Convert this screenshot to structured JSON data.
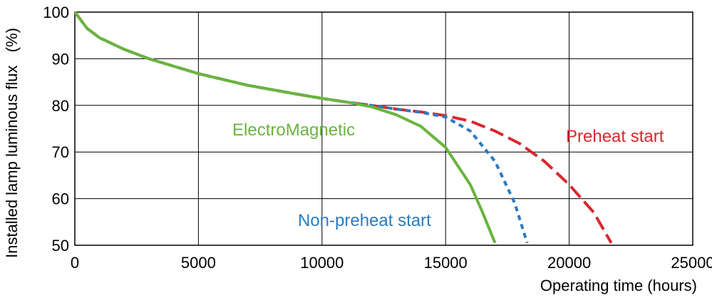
{
  "chart_data": {
    "type": "line",
    "xlabel": "Operating time (hours)",
    "ylabel": "Installed lamp luminous flux   (%)",
    "xlim": [
      0,
      25000
    ],
    "ylim": [
      50,
      100
    ],
    "x_ticks": [
      "0",
      "5000",
      "10000",
      "15000",
      "20000",
      "25000"
    ],
    "y_ticks": [
      "50",
      "60",
      "70",
      "80",
      "90",
      "100"
    ],
    "grid": true,
    "series": [
      {
        "name": "ElectroMagnetic",
        "color": "#6ab43e",
        "dash": "solid",
        "points": [
          [
            0,
            100
          ],
          [
            500,
            96.5
          ],
          [
            1000,
            94.5
          ],
          [
            2000,
            92
          ],
          [
            3000,
            90
          ],
          [
            5000,
            86.8
          ],
          [
            7000,
            84.3
          ],
          [
            9000,
            82.4
          ],
          [
            10000,
            81.5
          ],
          [
            11000,
            80.7
          ],
          [
            12000,
            79.7
          ],
          [
            13000,
            78
          ],
          [
            14000,
            75.5
          ],
          [
            15000,
            71
          ],
          [
            16000,
            63
          ],
          [
            16500,
            57
          ],
          [
            17000,
            50.5
          ]
        ]
      },
      {
        "name": "Non-preheat start",
        "color": "#2b7bbf",
        "dash": "short",
        "points": [
          [
            0,
            100
          ],
          [
            500,
            96.5
          ],
          [
            1000,
            94.5
          ],
          [
            2000,
            92
          ],
          [
            3000,
            90
          ],
          [
            5000,
            86.8
          ],
          [
            7000,
            84.3
          ],
          [
            9000,
            82.4
          ],
          [
            10000,
            81.5
          ],
          [
            11000,
            80.7
          ],
          [
            12000,
            80
          ],
          [
            13000,
            79.2
          ],
          [
            14000,
            78.5
          ],
          [
            15000,
            77.5
          ],
          [
            16000,
            74.5
          ],
          [
            17000,
            68
          ],
          [
            17800,
            59
          ],
          [
            18300,
            50.5
          ]
        ]
      },
      {
        "name": "Preheat start",
        "color": "#d9272e",
        "dash": "long",
        "points": [
          [
            0,
            100
          ],
          [
            500,
            96.5
          ],
          [
            1000,
            94.5
          ],
          [
            2000,
            92
          ],
          [
            3000,
            90
          ],
          [
            5000,
            86.8
          ],
          [
            7000,
            84.3
          ],
          [
            9000,
            82.4
          ],
          [
            10000,
            81.5
          ],
          [
            11000,
            80.7
          ],
          [
            12000,
            80
          ],
          [
            13000,
            79.2
          ],
          [
            14000,
            78.6
          ],
          [
            15000,
            77.8
          ],
          [
            16000,
            76.6
          ],
          [
            17000,
            74.5
          ],
          [
            18000,
            71.8
          ],
          [
            19000,
            68
          ],
          [
            20000,
            63
          ],
          [
            21000,
            57
          ],
          [
            21700,
            50.5
          ]
        ]
      }
    ]
  }
}
